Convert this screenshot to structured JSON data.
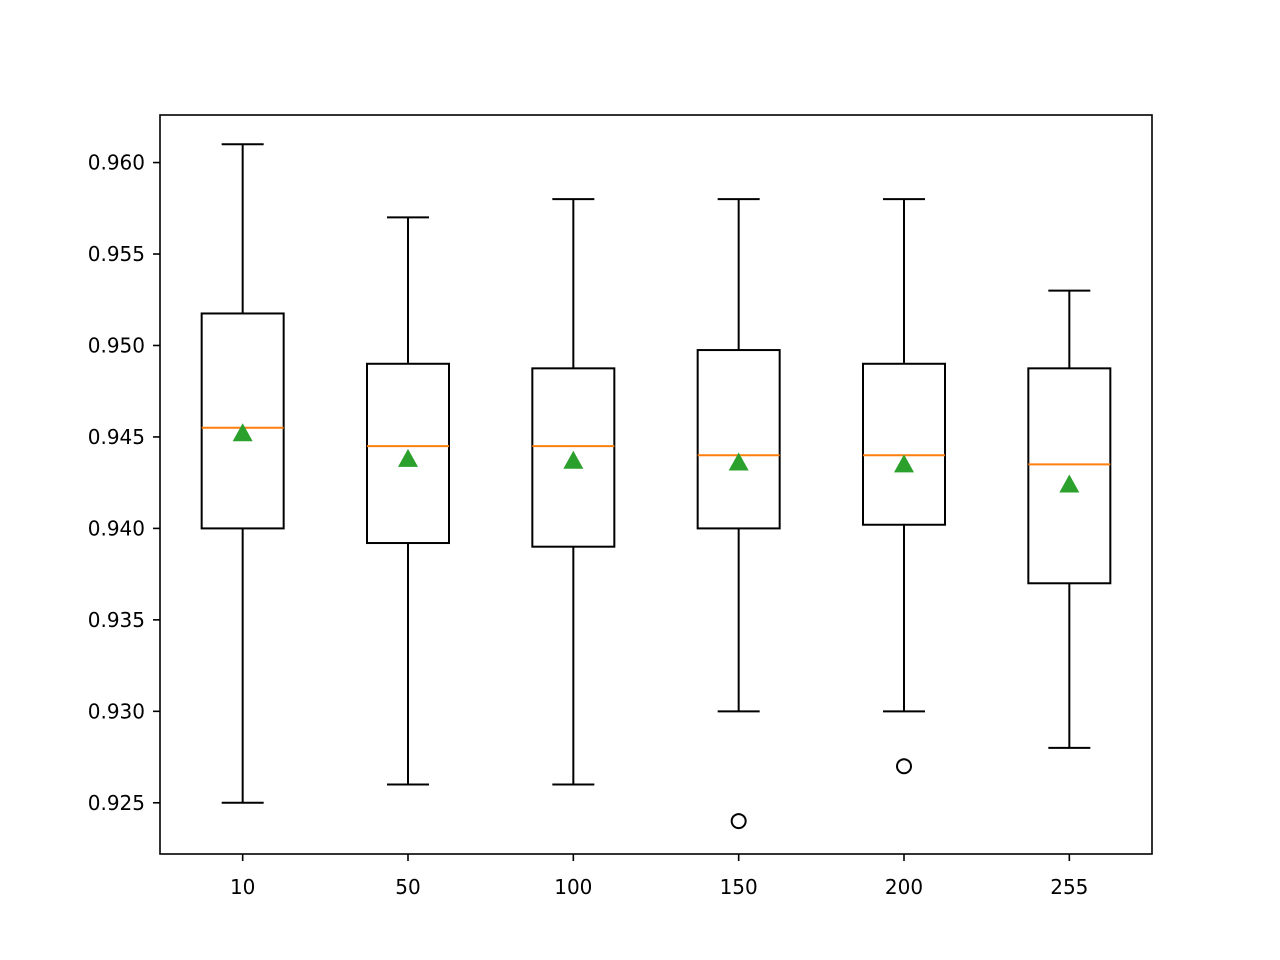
{
  "chart_data": {
    "type": "boxplot",
    "title": "",
    "xlabel": "",
    "ylabel": "",
    "categories": [
      "10",
      "50",
      "100",
      "150",
      "200",
      "255"
    ],
    "ylim": [
      0.9222,
      0.9626
    ],
    "yticks": [
      0.925,
      0.93,
      0.935,
      0.94,
      0.945,
      0.95,
      0.955,
      0.96
    ],
    "ytick_labels": [
      "0.925",
      "0.930",
      "0.935",
      "0.940",
      "0.945",
      "0.950",
      "0.955",
      "0.960"
    ],
    "grid": false,
    "legend": null,
    "boxes": [
      {
        "label": "10",
        "whisker_low": 0.925,
        "q1": 0.94,
        "median": 0.9455,
        "q3": 0.95175,
        "whisker_high": 0.961,
        "mean": 0.9452,
        "outliers": []
      },
      {
        "label": "50",
        "whisker_low": 0.926,
        "q1": 0.9392,
        "median": 0.9445,
        "q3": 0.949,
        "whisker_high": 0.957,
        "mean": 0.9438,
        "outliers": []
      },
      {
        "label": "100",
        "whisker_low": 0.926,
        "q1": 0.939,
        "median": 0.9445,
        "q3": 0.94875,
        "whisker_high": 0.958,
        "mean": 0.9437,
        "outliers": []
      },
      {
        "label": "150",
        "whisker_low": 0.93,
        "q1": 0.94,
        "median": 0.944,
        "q3": 0.94975,
        "whisker_high": 0.958,
        "mean": 0.9436,
        "outliers": [
          0.924
        ]
      },
      {
        "label": "200",
        "whisker_low": 0.93,
        "q1": 0.9402,
        "median": 0.944,
        "q3": 0.949,
        "whisker_high": 0.958,
        "mean": 0.9435,
        "outliers": [
          0.927
        ]
      },
      {
        "label": "255",
        "whisker_low": 0.928,
        "q1": 0.937,
        "median": 0.9435,
        "q3": 0.94875,
        "whisker_high": 0.953,
        "mean": 0.9424,
        "outliers": []
      }
    ],
    "colors": {
      "box": "#000000",
      "median": "#ff7f0e",
      "mean_marker": "#2ca02c",
      "outlier": "#000000"
    }
  }
}
